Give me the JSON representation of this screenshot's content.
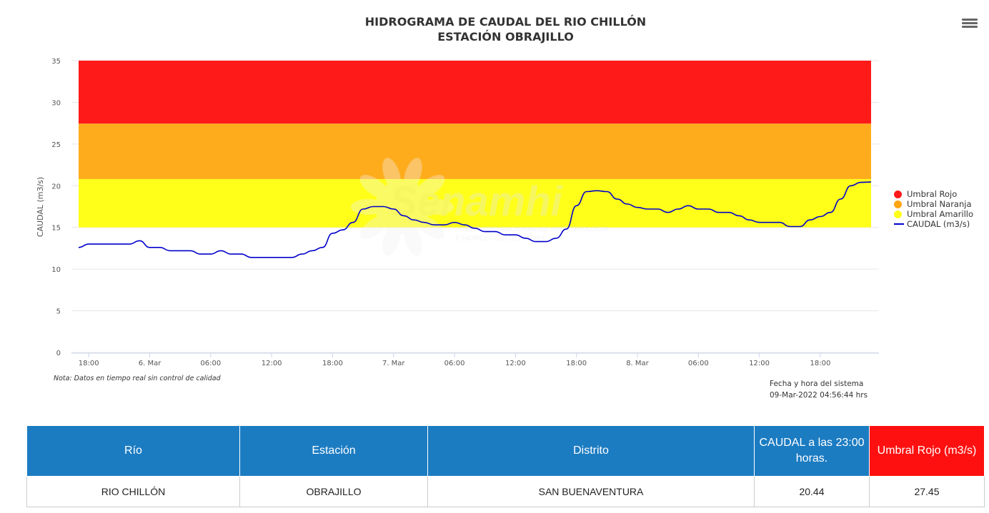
{
  "header": {
    "title_line1": "HIDROGRAMA DE CAUDAL DEL RIO CHILLÓN",
    "title_line2": "ESTACIÓN OBRAJILLO",
    "menu_icon": "hamburger-menu-icon"
  },
  "chart_data": {
    "type": "line",
    "title": "HIDROGRAMA DE CAUDAL DEL RIO CHILLÓN",
    "subtitle": "ESTACIÓN OBRAJILLO",
    "ylabel": "CAUDAL (m3/s)",
    "xlabel": "",
    "ylim": [
      0,
      35
    ],
    "yticks": [
      0,
      5,
      10,
      15,
      20,
      25,
      30,
      35
    ],
    "xlim": [
      "2022-03-05T17:00",
      "2022-03-08T23:00"
    ],
    "xticks": [
      {
        "t": "2022-03-05T18:00",
        "label": "18:00"
      },
      {
        "t": "2022-03-06T00:00",
        "label": "6. Mar"
      },
      {
        "t": "2022-03-06T06:00",
        "label": "06:00"
      },
      {
        "t": "2022-03-06T12:00",
        "label": "12:00"
      },
      {
        "t": "2022-03-06T18:00",
        "label": "18:00"
      },
      {
        "t": "2022-03-07T00:00",
        "label": "7. Mar"
      },
      {
        "t": "2022-03-07T06:00",
        "label": "06:00"
      },
      {
        "t": "2022-03-07T12:00",
        "label": "12:00"
      },
      {
        "t": "2022-03-07T18:00",
        "label": "18:00"
      },
      {
        "t": "2022-03-08T00:00",
        "label": "8. Mar"
      },
      {
        "t": "2022-03-08T06:00",
        "label": "06:00"
      },
      {
        "t": "2022-03-08T12:00",
        "label": "12:00"
      },
      {
        "t": "2022-03-08T18:00",
        "label": "18:00"
      }
    ],
    "grid": true,
    "legend_position": "right",
    "bands": [
      {
        "name": "Umbral Amarillo",
        "from": 15,
        "to": 20.8,
        "color": "#ffff1a"
      },
      {
        "name": "Umbral Naranja",
        "from": 20.8,
        "to": 27.45,
        "color": "#ffac1c"
      },
      {
        "name": "Umbral Rojo",
        "from": 27.45,
        "to": 35,
        "color": "#ff1a1a"
      }
    ],
    "series": [
      {
        "name": "CAUDAL (m3/s)",
        "color": "#0000cc",
        "data": [
          [
            "2022-03-05T17:00",
            12.6
          ],
          [
            "2022-03-05T18:00",
            13.0
          ],
          [
            "2022-03-05T19:00",
            13.0
          ],
          [
            "2022-03-05T20:00",
            13.0
          ],
          [
            "2022-03-05T21:00",
            13.0
          ],
          [
            "2022-03-05T22:00",
            13.0
          ],
          [
            "2022-03-05T23:00",
            13.4
          ],
          [
            "2022-03-06T00:00",
            12.6
          ],
          [
            "2022-03-06T01:00",
            12.6
          ],
          [
            "2022-03-06T02:00",
            12.2
          ],
          [
            "2022-03-06T03:00",
            12.2
          ],
          [
            "2022-03-06T04:00",
            12.2
          ],
          [
            "2022-03-06T05:00",
            11.8
          ],
          [
            "2022-03-06T06:00",
            11.8
          ],
          [
            "2022-03-06T07:00",
            12.2
          ],
          [
            "2022-03-06T08:00",
            11.8
          ],
          [
            "2022-03-06T09:00",
            11.8
          ],
          [
            "2022-03-06T10:00",
            11.4
          ],
          [
            "2022-03-06T11:00",
            11.4
          ],
          [
            "2022-03-06T12:00",
            11.4
          ],
          [
            "2022-03-06T13:00",
            11.4
          ],
          [
            "2022-03-06T14:00",
            11.4
          ],
          [
            "2022-03-06T15:00",
            11.8
          ],
          [
            "2022-03-06T16:00",
            12.2
          ],
          [
            "2022-03-06T17:00",
            12.6
          ],
          [
            "2022-03-06T18:00",
            14.3
          ],
          [
            "2022-03-06T19:00",
            14.7
          ],
          [
            "2022-03-06T20:00",
            15.6
          ],
          [
            "2022-03-06T21:00",
            17.2
          ],
          [
            "2022-03-06T22:00",
            17.5
          ],
          [
            "2022-03-06T23:00",
            17.5
          ],
          [
            "2022-03-07T00:00",
            17.2
          ],
          [
            "2022-03-07T01:00",
            16.4
          ],
          [
            "2022-03-07T02:00",
            15.9
          ],
          [
            "2022-03-07T03:00",
            15.6
          ],
          [
            "2022-03-07T04:00",
            15.3
          ],
          [
            "2022-03-07T05:00",
            15.3
          ],
          [
            "2022-03-07T06:00",
            15.6
          ],
          [
            "2022-03-07T07:00",
            15.3
          ],
          [
            "2022-03-07T08:00",
            14.9
          ],
          [
            "2022-03-07T09:00",
            14.5
          ],
          [
            "2022-03-07T10:00",
            14.5
          ],
          [
            "2022-03-07T11:00",
            14.1
          ],
          [
            "2022-03-07T12:00",
            14.1
          ],
          [
            "2022-03-07T13:00",
            13.7
          ],
          [
            "2022-03-07T14:00",
            13.3
          ],
          [
            "2022-03-07T15:00",
            13.3
          ],
          [
            "2022-03-07T16:00",
            13.7
          ],
          [
            "2022-03-07T17:00",
            14.8
          ],
          [
            "2022-03-07T18:00",
            17.6
          ],
          [
            "2022-03-07T19:00",
            19.3
          ],
          [
            "2022-03-07T20:00",
            19.4
          ],
          [
            "2022-03-07T21:00",
            19.3
          ],
          [
            "2022-03-07T22:00",
            18.4
          ],
          [
            "2022-03-07T23:00",
            17.8
          ],
          [
            "2022-03-08T00:00",
            17.4
          ],
          [
            "2022-03-08T01:00",
            17.2
          ],
          [
            "2022-03-08T02:00",
            17.2
          ],
          [
            "2022-03-08T03:00",
            16.8
          ],
          [
            "2022-03-08T04:00",
            17.2
          ],
          [
            "2022-03-08T05:00",
            17.6
          ],
          [
            "2022-03-08T06:00",
            17.2
          ],
          [
            "2022-03-08T07:00",
            17.2
          ],
          [
            "2022-03-08T08:00",
            16.8
          ],
          [
            "2022-03-08T09:00",
            16.8
          ],
          [
            "2022-03-08T10:00",
            16.4
          ],
          [
            "2022-03-08T11:00",
            15.9
          ],
          [
            "2022-03-08T12:00",
            15.6
          ],
          [
            "2022-03-08T13:00",
            15.6
          ],
          [
            "2022-03-08T14:00",
            15.6
          ],
          [
            "2022-03-08T15:00",
            15.1
          ],
          [
            "2022-03-08T16:00",
            15.1
          ],
          [
            "2022-03-08T17:00",
            15.9
          ],
          [
            "2022-03-08T18:00",
            16.3
          ],
          [
            "2022-03-08T19:00",
            16.8
          ],
          [
            "2022-03-08T20:00",
            18.4
          ],
          [
            "2022-03-08T21:00",
            20.0
          ],
          [
            "2022-03-08T22:00",
            20.4
          ],
          [
            "2022-03-08T23:00",
            20.44
          ]
        ]
      }
    ],
    "watermark": {
      "text": "Senamhi",
      "line1": "SERVICIO NACIONAL DE METEOROLOGÍA",
      "line2": "E HIDROLOGÍA DEL PERÚ"
    }
  },
  "legend": [
    {
      "label": "Umbral Rojo",
      "color": "#ff1a1a",
      "kind": "dot"
    },
    {
      "label": "Umbral Naranja",
      "color": "#ffa514",
      "kind": "dot"
    },
    {
      "label": "Umbral Amarillo",
      "color": "#ffff1a",
      "kind": "dot"
    },
    {
      "label": "CAUDAL (m3/s)",
      "color": "#0000cc",
      "kind": "line"
    }
  ],
  "note": "Nota: Datos en tiempo real sin control de calidad",
  "system_time": {
    "label": "Fecha y hora del sistema",
    "value": "09-Mar-2022 04:56:44 hrs"
  },
  "table": {
    "headers": [
      "Río",
      "Estación",
      "Distrito",
      "CAUDAL a las 23:00 horas.",
      "Umbral Rojo (m3/s)"
    ],
    "rows": [
      [
        "RIO CHILLÓN",
        "OBRAJILLO",
        "SAN BUENAVENTURA",
        "20.44",
        "27.45"
      ]
    ]
  }
}
